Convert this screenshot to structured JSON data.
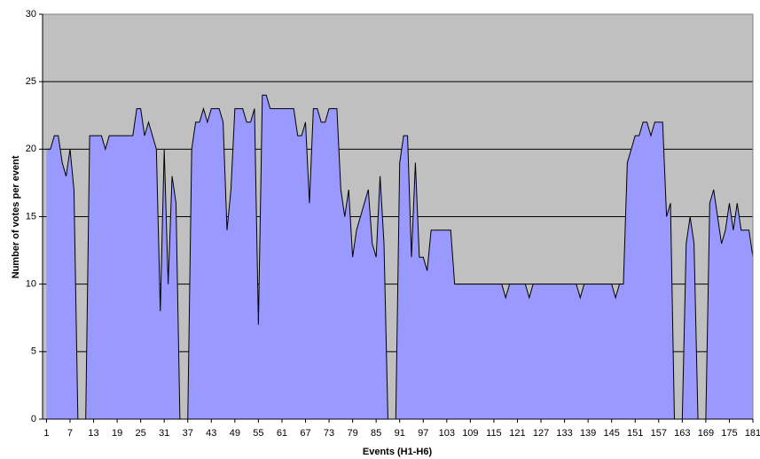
{
  "chart_data": {
    "type": "area",
    "x_label": "Events (H1-H6)",
    "y_label": "Number of votes per event",
    "x": [
      1,
      2,
      3,
      4,
      5,
      6,
      7,
      8,
      9,
      10,
      11,
      12,
      13,
      14,
      15,
      16,
      17,
      18,
      19,
      20,
      21,
      22,
      23,
      24,
      25,
      26,
      27,
      28,
      29,
      30,
      31,
      32,
      33,
      34,
      35,
      36,
      37,
      38,
      39,
      40,
      41,
      42,
      43,
      44,
      45,
      46,
      47,
      48,
      49,
      50,
      51,
      52,
      53,
      54,
      55,
      56,
      57,
      58,
      59,
      60,
      61,
      62,
      63,
      64,
      65,
      66,
      67,
      68,
      69,
      70,
      71,
      72,
      73,
      74,
      75,
      76,
      77,
      78,
      79,
      80,
      81,
      82,
      83,
      84,
      85,
      86,
      87,
      88,
      89,
      90,
      91,
      92,
      93,
      94,
      95,
      96,
      97,
      98,
      99,
      100,
      101,
      102,
      103,
      104,
      105,
      106,
      107,
      108,
      109,
      110,
      111,
      112,
      113,
      114,
      115,
      116,
      117,
      118,
      119,
      120,
      121,
      122,
      123,
      124,
      125,
      126,
      127,
      128,
      129,
      130,
      131,
      132,
      133,
      134,
      135,
      136,
      137,
      138,
      139,
      140,
      141,
      142,
      143,
      144,
      145,
      146,
      147,
      148,
      149,
      150,
      151,
      152,
      153,
      154,
      155,
      156,
      157,
      158,
      159,
      160,
      161,
      162,
      163,
      164,
      165,
      166,
      167,
      168,
      169,
      170,
      171,
      172,
      173,
      174,
      175,
      176,
      177,
      178,
      179,
      180,
      181
    ],
    "values": [
      20,
      20,
      21,
      21,
      19,
      18,
      20,
      17,
      0,
      0,
      0,
      21,
      21,
      21,
      21,
      20,
      21,
      21,
      21,
      21,
      21,
      21,
      21,
      23,
      23,
      21,
      22,
      21,
      20,
      8,
      20,
      10,
      18,
      16,
      0,
      0,
      0,
      20,
      22,
      22,
      23,
      22,
      23,
      23,
      23,
      22,
      14,
      17,
      23,
      23,
      23,
      22,
      22,
      23,
      7,
      24,
      24,
      23,
      23,
      23,
      23,
      23,
      23,
      23,
      21,
      21,
      22,
      16,
      23,
      23,
      22,
      22,
      23,
      23,
      23,
      17,
      15,
      17,
      12,
      14,
      15,
      16,
      17,
      13,
      12,
      18,
      13,
      0,
      0,
      0,
      19,
      21,
      21,
      12,
      19,
      12,
      12,
      11,
      14,
      14,
      14,
      14,
      14,
      14,
      10,
      10,
      10,
      10,
      10,
      10,
      10,
      10,
      10,
      10,
      10,
      10,
      10,
      9,
      10,
      10,
      10,
      10,
      10,
      9,
      10,
      10,
      10,
      10,
      10,
      10,
      10,
      10,
      10,
      10,
      10,
      10,
      9,
      10,
      10,
      10,
      10,
      10,
      10,
      10,
      10,
      9,
      10,
      10,
      19,
      20,
      21,
      21,
      22,
      22,
      21,
      22,
      22,
      22,
      15,
      16,
      0,
      0,
      0,
      13,
      15,
      13,
      0,
      0,
      0,
      16,
      17,
      15,
      13,
      14,
      16,
      14,
      16,
      14,
      14,
      14,
      12
    ],
    "color": "#9999ff",
    "line_color": "#000000",
    "background": "#c0c0c0",
    "xlim": [
      0,
      181
    ],
    "xticks": [
      1,
      7,
      13,
      19,
      25,
      31,
      37,
      43,
      49,
      55,
      61,
      67,
      73,
      79,
      85,
      91,
      97,
      103,
      109,
      115,
      121,
      127,
      133,
      139,
      145,
      151,
      157,
      163,
      169,
      175,
      181
    ],
    "ylim": [
      0,
      30
    ],
    "yticks": [
      0,
      5,
      10,
      15,
      20,
      25,
      30
    ],
    "grid": true
  }
}
